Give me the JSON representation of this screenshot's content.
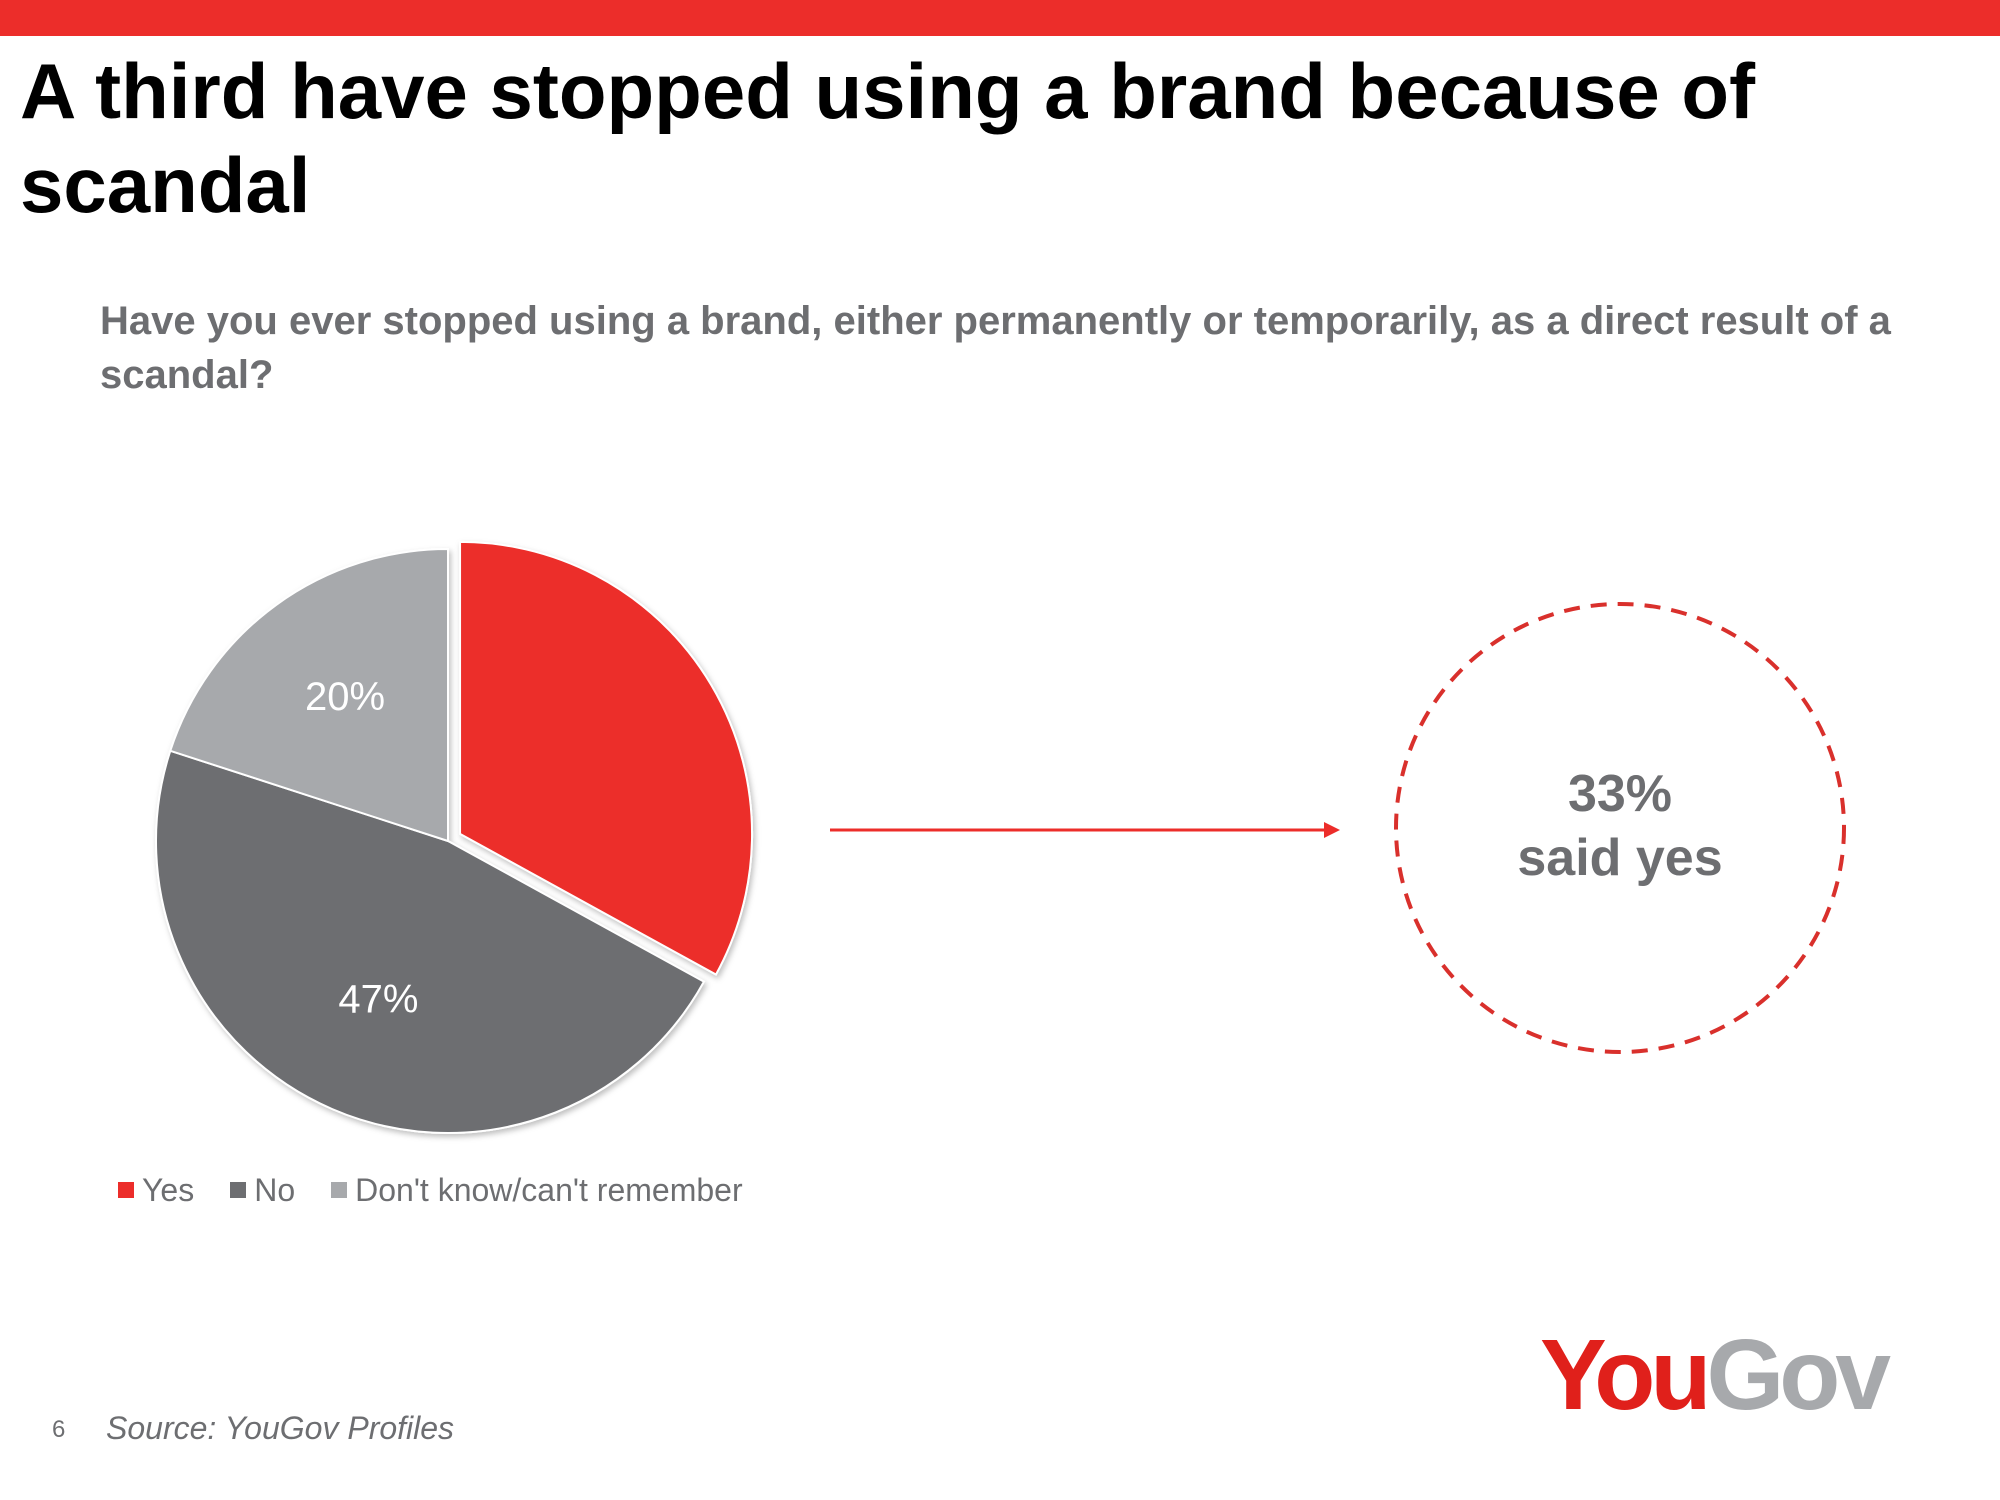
{
  "slide": {
    "title": "A third have stopped using a brand because of scandal",
    "question": "Have you ever stopped using a brand, either permanently or temporarily, as a direct result of a scandal?",
    "callout_value": "33%",
    "callout_text": "said yes",
    "page_number": "6",
    "source": "Source: YouGov Profiles",
    "logo_you": "You",
    "logo_gov": "Gov"
  },
  "colors": {
    "accent": "#ec2d2a",
    "dark_grey": "#6d6e71",
    "light_grey": "#a7a9ac"
  },
  "chart_data": {
    "type": "pie",
    "categories": [
      "Yes",
      "No",
      "Don't know/can't remember"
    ],
    "values": [
      33,
      47,
      20
    ],
    "labels": [
      "",
      "47%",
      "20%"
    ],
    "colors": [
      "#ec2d2a",
      "#6d6e71",
      "#a7a9ac"
    ],
    "exploded": "Yes",
    "legend_position": "bottom-left"
  }
}
